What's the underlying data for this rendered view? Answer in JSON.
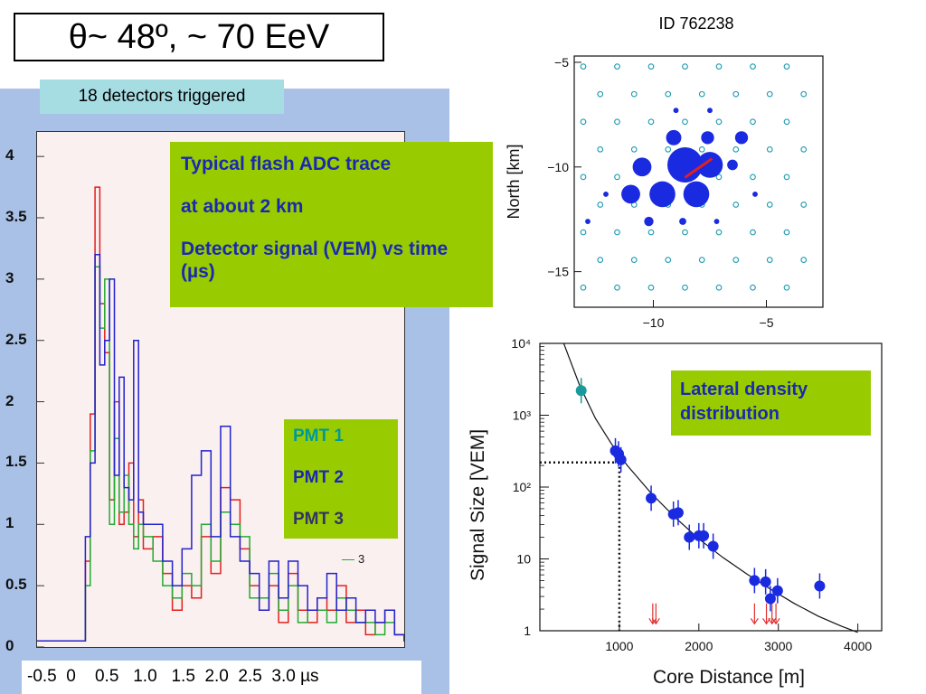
{
  "title": "θ~ 48º, ~ 70 EeV",
  "triggered_label": "18 detectors triggered",
  "fadc": {
    "note_lines": [
      "Typical flash ADC trace",
      "at about 2 km",
      "Detector signal (VEM) vs time (µs)"
    ],
    "x_axis_label": "-0.5  0    0.5   1.0   1.5  2.0  2.5  3.0 µs",
    "legend_tag": "3",
    "pmt_labels": [
      "PMT 1",
      "PMT 2",
      "PMT 3"
    ],
    "colors": {
      "pmt1": "#009999",
      "pmt2": "#1a2ab0",
      "pmt3": "#333366",
      "trace_red": "#e02020",
      "trace_green": "#22aa33",
      "trace_blue": "#2222cc"
    }
  },
  "chart_data": [
    {
      "type": "line",
      "name": "fadc-trace",
      "ylim": [
        0,
        4.2
      ],
      "yticks": [
        0,
        0.5,
        1,
        1.5,
        2,
        2.5,
        3,
        3.5,
        4
      ],
      "ytick_labels": [
        "0",
        "0.5",
        "1",
        "1.5",
        "2",
        "2.5",
        "3",
        "3.5",
        "4"
      ],
      "xlim": [
        -0.5,
        3.3
      ],
      "series": [
        {
          "x": [
            -0.5,
            -0.3,
            -0.1,
            0.0,
            0.05,
            0.1,
            0.15,
            0.2,
            0.25,
            0.3,
            0.35,
            0.4,
            0.45,
            0.5,
            0.55,
            0.6,
            0.7,
            0.8,
            0.9,
            1.0,
            1.1,
            1.2,
            1.3,
            1.4,
            1.5,
            1.6,
            1.7,
            1.8,
            1.9,
            2.0,
            2.1,
            2.2,
            2.3,
            2.4,
            2.5,
            2.6,
            2.7,
            2.8,
            2.9,
            3.0,
            3.1,
            3.2,
            3.3
          ],
          "values": [
            0.05,
            0.05,
            0.05,
            0.7,
            1.9,
            3.75,
            2.8,
            2.4,
            1.2,
            2.0,
            1.0,
            1.1,
            1.5,
            0.9,
            1.2,
            0.8,
            0.9,
            0.6,
            0.3,
            0.5,
            0.4,
            0.9,
            0.6,
            1.3,
            1.2,
            0.8,
            0.5,
            0.3,
            0.5,
            0.2,
            0.6,
            0.3,
            0.2,
            0.4,
            0.3,
            0.5,
            0.2,
            0.3,
            0.1,
            0.2,
            0.3,
            0.1,
            0.05
          ]
        },
        {
          "x": [
            -0.5,
            -0.3,
            -0.1,
            0.0,
            0.05,
            0.1,
            0.15,
            0.2,
            0.25,
            0.3,
            0.35,
            0.4,
            0.45,
            0.5,
            0.55,
            0.6,
            0.7,
            0.8,
            0.9,
            1.0,
            1.1,
            1.2,
            1.3,
            1.4,
            1.5,
            1.6,
            1.7,
            1.8,
            1.9,
            2.0,
            2.1,
            2.2,
            2.3,
            2.4,
            2.5,
            2.6,
            2.7,
            2.8,
            2.9,
            3.0,
            3.1,
            3.2,
            3.3
          ],
          "values": [
            0.05,
            0.05,
            0.05,
            0.5,
            1.6,
            3.1,
            2.6,
            3.0,
            1.0,
            1.7,
            1.1,
            1.4,
            1.0,
            0.8,
            1.0,
            0.9,
            0.7,
            0.5,
            0.4,
            0.6,
            0.5,
            1.0,
            0.7,
            1.1,
            1.0,
            0.9,
            0.4,
            0.4,
            0.6,
            0.3,
            0.5,
            0.2,
            0.3,
            0.3,
            0.2,
            0.4,
            0.3,
            0.2,
            0.2,
            0.1,
            0.2,
            0.1,
            0.05
          ]
        },
        {
          "x": [
            -0.5,
            -0.3,
            -0.1,
            0.0,
            0.05,
            0.1,
            0.15,
            0.2,
            0.25,
            0.3,
            0.35,
            0.4,
            0.45,
            0.5,
            0.55,
            0.6,
            0.7,
            0.8,
            0.9,
            1.0,
            1.1,
            1.2,
            1.3,
            1.4,
            1.5,
            1.6,
            1.7,
            1.8,
            1.9,
            2.0,
            2.1,
            2.2,
            2.3,
            2.4,
            2.5,
            2.6,
            2.7,
            2.8,
            2.9,
            3.0,
            3.1,
            3.2,
            3.3
          ],
          "values": [
            0.05,
            0.05,
            0.05,
            0.9,
            1.5,
            3.2,
            2.3,
            2.5,
            3.0,
            1.4,
            2.2,
            1.3,
            1.2,
            2.5,
            1.1,
            1.0,
            1.0,
            0.7,
            0.5,
            0.8,
            1.4,
            1.6,
            0.9,
            1.8,
            0.9,
            0.7,
            0.6,
            0.3,
            0.7,
            0.4,
            0.7,
            0.5,
            0.3,
            0.4,
            0.6,
            0.3,
            0.4,
            0.2,
            0.3,
            0.2,
            0.3,
            0.1,
            0.05
          ]
        }
      ]
    },
    {
      "type": "scatter",
      "name": "station-map",
      "title": "ID 762238",
      "ylabel": "North [km]",
      "xlim": [
        -13.5,
        -2.5
      ],
      "ylim": [
        -16.7,
        -4.7
      ],
      "xticks": [
        -10,
        -5
      ],
      "yticks": [
        -5,
        -10,
        -15
      ],
      "triggered": [
        {
          "x": -8.6,
          "y": -9.9,
          "r": 3.0
        },
        {
          "x": -7.5,
          "y": -9.9,
          "r": 2.2
        },
        {
          "x": -9.6,
          "y": -11.3,
          "r": 2.2
        },
        {
          "x": -8.1,
          "y": -11.3,
          "r": 2.2
        },
        {
          "x": -11.0,
          "y": -11.3,
          "r": 1.6
        },
        {
          "x": -10.5,
          "y": -10.0,
          "r": 1.6
        },
        {
          "x": -9.1,
          "y": -8.6,
          "r": 1.3
        },
        {
          "x": -7.6,
          "y": -8.6,
          "r": 1.1
        },
        {
          "x": -6.1,
          "y": -8.6,
          "r": 1.1
        },
        {
          "x": -6.5,
          "y": -9.9,
          "r": 0.9
        },
        {
          "x": -10.2,
          "y": -12.6,
          "r": 0.8
        },
        {
          "x": -8.7,
          "y": -12.6,
          "r": 0.6
        },
        {
          "x": -9.0,
          "y": -7.3,
          "r": 0.45
        },
        {
          "x": -7.5,
          "y": -7.3,
          "r": 0.45
        },
        {
          "x": -12.1,
          "y": -11.3,
          "r": 0.45
        },
        {
          "x": -5.5,
          "y": -11.3,
          "r": 0.45
        },
        {
          "x": -12.9,
          "y": -12.6,
          "r": 0.45
        },
        {
          "x": -7.2,
          "y": -12.6,
          "r": 0.45
        }
      ]
    },
    {
      "type": "scatter",
      "name": "lateral-distribution",
      "xlabel": "Core Distance [m]",
      "ylabel": "Signal Size [VEM]",
      "xlim": [
        0,
        4300
      ],
      "ylim": [
        1,
        10000
      ],
      "log_y": true,
      "xticks": [
        1000,
        2000,
        3000,
        4000
      ],
      "yticks": [
        1,
        10,
        100,
        1000,
        10000
      ],
      "ytick_labels": [
        "1",
        "10",
        "10²",
        "10³",
        "10⁴"
      ],
      "points": [
        {
          "x": 520,
          "y": 2200,
          "sat": true
        },
        {
          "x": 950,
          "y": 320
        },
        {
          "x": 990,
          "y": 290
        },
        {
          "x": 1020,
          "y": 240
        },
        {
          "x": 1400,
          "y": 70
        },
        {
          "x": 1680,
          "y": 42
        },
        {
          "x": 1740,
          "y": 44
        },
        {
          "x": 1880,
          "y": 20
        },
        {
          "x": 2000,
          "y": 21
        },
        {
          "x": 2060,
          "y": 21
        },
        {
          "x": 2180,
          "y": 15
        },
        {
          "x": 2700,
          "y": 5.0
        },
        {
          "x": 2840,
          "y": 4.8
        },
        {
          "x": 2900,
          "y": 2.8
        },
        {
          "x": 2990,
          "y": 3.6
        },
        {
          "x": 3520,
          "y": 4.2
        }
      ],
      "upper_limits": [
        1420,
        1460,
        2700,
        2850,
        2920,
        2970
      ],
      "fit_curve_x": [
        300,
        500,
        700,
        900,
        1100,
        1400,
        1700,
        2000,
        2300,
        2600,
        2900,
        3200,
        3500,
        3800,
        4000
      ],
      "fit_curve_y": [
        12000,
        2600,
        900,
        400,
        200,
        82,
        38,
        19,
        10.5,
        6.2,
        3.8,
        2.4,
        1.6,
        1.15,
        0.95
      ],
      "reference": {
        "x": 1000,
        "y": 220
      },
      "annotation": "Lateral density distribution",
      "colors": {
        "points": "#1a2ae0",
        "saturated": "#1a9a9a",
        "limits": "#e03030"
      }
    }
  ]
}
